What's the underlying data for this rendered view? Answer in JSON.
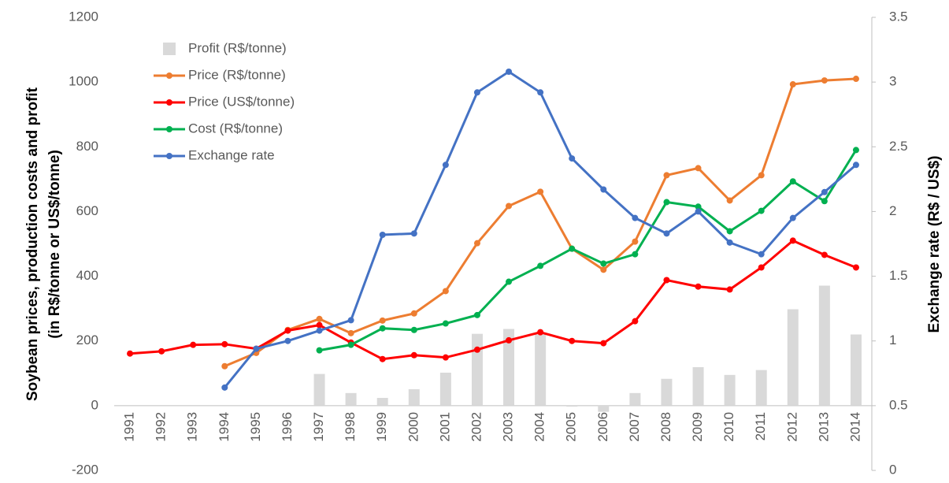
{
  "chart_data": {
    "type": "combo",
    "categories": [
      "1991",
      "1992",
      "1993",
      "1994",
      "1995",
      "1996",
      "1997",
      "1998",
      "1999",
      "2000",
      "2001",
      "2002",
      "2003",
      "2004",
      "2005",
      "2006",
      "2007",
      "2008",
      "2009",
      "2010",
      "2011",
      "2012",
      "2013",
      "2014"
    ],
    "ylabel": [
      "Soybean prices, production costs and profit",
      "(in R$/tonne or US$/tonne)"
    ],
    "y2label": "Exchange rate (R$ / US$)",
    "ylim": [
      -200,
      1200
    ],
    "yticks": [
      -200,
      0,
      200,
      400,
      600,
      800,
      1000,
      1200
    ],
    "y2lim": [
      0,
      3.5
    ],
    "y2ticks": [
      0,
      0.5,
      1,
      1.5,
      2,
      2.5,
      3,
      3.5
    ],
    "legend": "upper left",
    "series": [
      {
        "name": "Profit (R$/tonne)",
        "type": "bar",
        "color": "#d9d9d9",
        "values": [
          null,
          null,
          null,
          null,
          null,
          null,
          98,
          39,
          24,
          51,
          102,
          222,
          237,
          220,
          -3,
          -19,
          39,
          83,
          119,
          95,
          110,
          298,
          371,
          220
        ]
      },
      {
        "name": "Price (R$/tonne)",
        "type": "line",
        "color": "#ed7d31",
        "values": [
          null,
          null,
          null,
          122,
          163,
          234,
          268,
          224,
          263,
          285,
          354,
          502,
          617,
          661,
          485,
          420,
          507,
          712,
          734,
          634,
          712,
          993,
          1005,
          1010
        ]
      },
      {
        "name": "Price (US$/tonne)",
        "type": "line",
        "color": "#ff0000",
        "values": [
          161,
          168,
          188,
          190,
          176,
          232,
          249,
          195,
          144,
          156,
          149,
          173,
          202,
          227,
          200,
          193,
          261,
          388,
          368,
          359,
          427,
          510,
          466,
          427
        ]
      },
      {
        "name": "Cost (R$/tonne)",
        "type": "line",
        "color": "#00b050",
        "values": [
          null,
          null,
          null,
          null,
          null,
          null,
          171,
          188,
          239,
          234,
          254,
          280,
          383,
          432,
          485,
          439,
          468,
          629,
          615,
          539,
          602,
          693,
          632,
          790
        ]
      },
      {
        "name": "Exchange rate",
        "type": "line",
        "axis": "y2",
        "color": "#4472c4",
        "values": [
          null,
          null,
          null,
          0.64,
          0.94,
          1.0,
          1.08,
          1.16,
          1.82,
          1.83,
          2.36,
          2.92,
          3.08,
          2.92,
          2.41,
          2.17,
          1.95,
          1.83,
          2.0,
          1.76,
          1.67,
          1.95,
          2.15,
          2.36
        ]
      }
    ]
  }
}
